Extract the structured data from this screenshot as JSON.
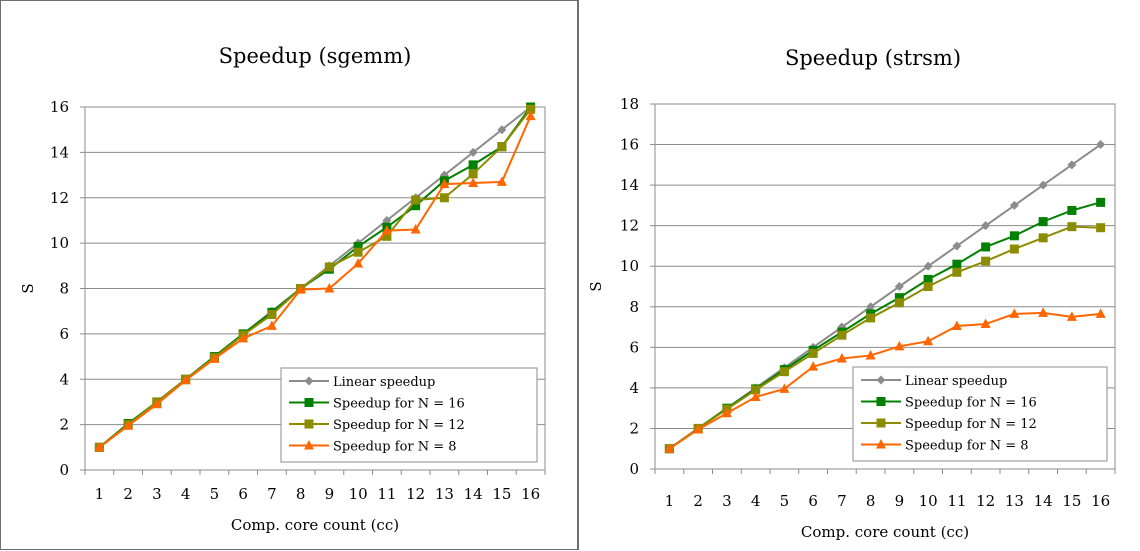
{
  "charts": [
    {
      "type": "line",
      "title": "Speedup (sgemm)",
      "xlabel": "Comp. core count (cc)",
      "ylabel": "S",
      "x": [
        1,
        2,
        3,
        4,
        5,
        6,
        7,
        8,
        9,
        10,
        11,
        12,
        13,
        14,
        15,
        16
      ],
      "ylim": [
        0,
        16
      ],
      "yticks": [
        0,
        2,
        4,
        6,
        8,
        10,
        12,
        14,
        16
      ],
      "grid": true,
      "legend_position": "bottom-right",
      "series": [
        {
          "name": "Linear speedup",
          "color": "#8c8c8c",
          "marker": "diamond",
          "values": [
            1,
            2,
            3,
            4,
            5,
            6,
            7,
            8,
            9,
            10,
            11,
            12,
            13,
            14,
            15,
            16
          ]
        },
        {
          "name": "Speedup for N = 16",
          "color": "#008000",
          "marker": "square",
          "values": [
            1,
            2.05,
            3,
            4,
            5,
            6,
            6.95,
            8,
            8.85,
            9.85,
            10.7,
            11.65,
            12.75,
            13.45,
            14.25,
            16
          ]
        },
        {
          "name": "Speedup for N = 12",
          "color": "#8c8c00",
          "marker": "square",
          "values": [
            1,
            2,
            3,
            4,
            4.95,
            5.95,
            6.85,
            8,
            8.95,
            9.6,
            10.3,
            11.9,
            12,
            13.05,
            14.25,
            15.9
          ]
        },
        {
          "name": "Speedup for N = 8",
          "color": "#ff6600",
          "marker": "triangle",
          "values": [
            1,
            1.95,
            2.9,
            3.95,
            4.9,
            5.8,
            6.35,
            7.95,
            8,
            9.1,
            10.55,
            10.6,
            12.6,
            12.65,
            12.7,
            15.6
          ]
        }
      ]
    },
    {
      "type": "line",
      "title": "Speedup (strsm)",
      "xlabel": "Comp. core count (cc)",
      "ylabel": "S",
      "x": [
        1,
        2,
        3,
        4,
        5,
        6,
        7,
        8,
        9,
        10,
        11,
        12,
        13,
        14,
        15,
        16
      ],
      "ylim": [
        0,
        18
      ],
      "yticks": [
        0,
        2,
        4,
        6,
        8,
        10,
        12,
        14,
        16,
        18
      ],
      "grid": true,
      "legend_position": "bottom-right",
      "series": [
        {
          "name": "Linear speedup",
          "color": "#8c8c8c",
          "marker": "diamond",
          "values": [
            1,
            2,
            3,
            4,
            5,
            6,
            7,
            8,
            9,
            10,
            11,
            12,
            13,
            14,
            15,
            16
          ]
        },
        {
          "name": "Speedup for N = 16",
          "color": "#008000",
          "marker": "square",
          "values": [
            1,
            2,
            3,
            3.95,
            4.9,
            5.85,
            6.75,
            7.65,
            8.45,
            9.35,
            10.1,
            10.95,
            11.5,
            12.2,
            12.75,
            13.15
          ]
        },
        {
          "name": "Speedup for N = 12",
          "color": "#8c8c00",
          "marker": "square",
          "values": [
            1,
            2,
            2.95,
            3.9,
            4.8,
            5.7,
            6.6,
            7.45,
            8.2,
            9,
            9.7,
            10.25,
            10.85,
            11.4,
            11.95,
            11.9
          ]
        },
        {
          "name": "Speedup for N = 8",
          "color": "#ff6600",
          "marker": "triangle",
          "values": [
            1,
            1.95,
            2.75,
            3.55,
            3.95,
            5.05,
            5.45,
            5.6,
            6.05,
            6.3,
            7.05,
            7.15,
            7.65,
            7.7,
            7.5,
            7.65
          ]
        }
      ]
    }
  ]
}
